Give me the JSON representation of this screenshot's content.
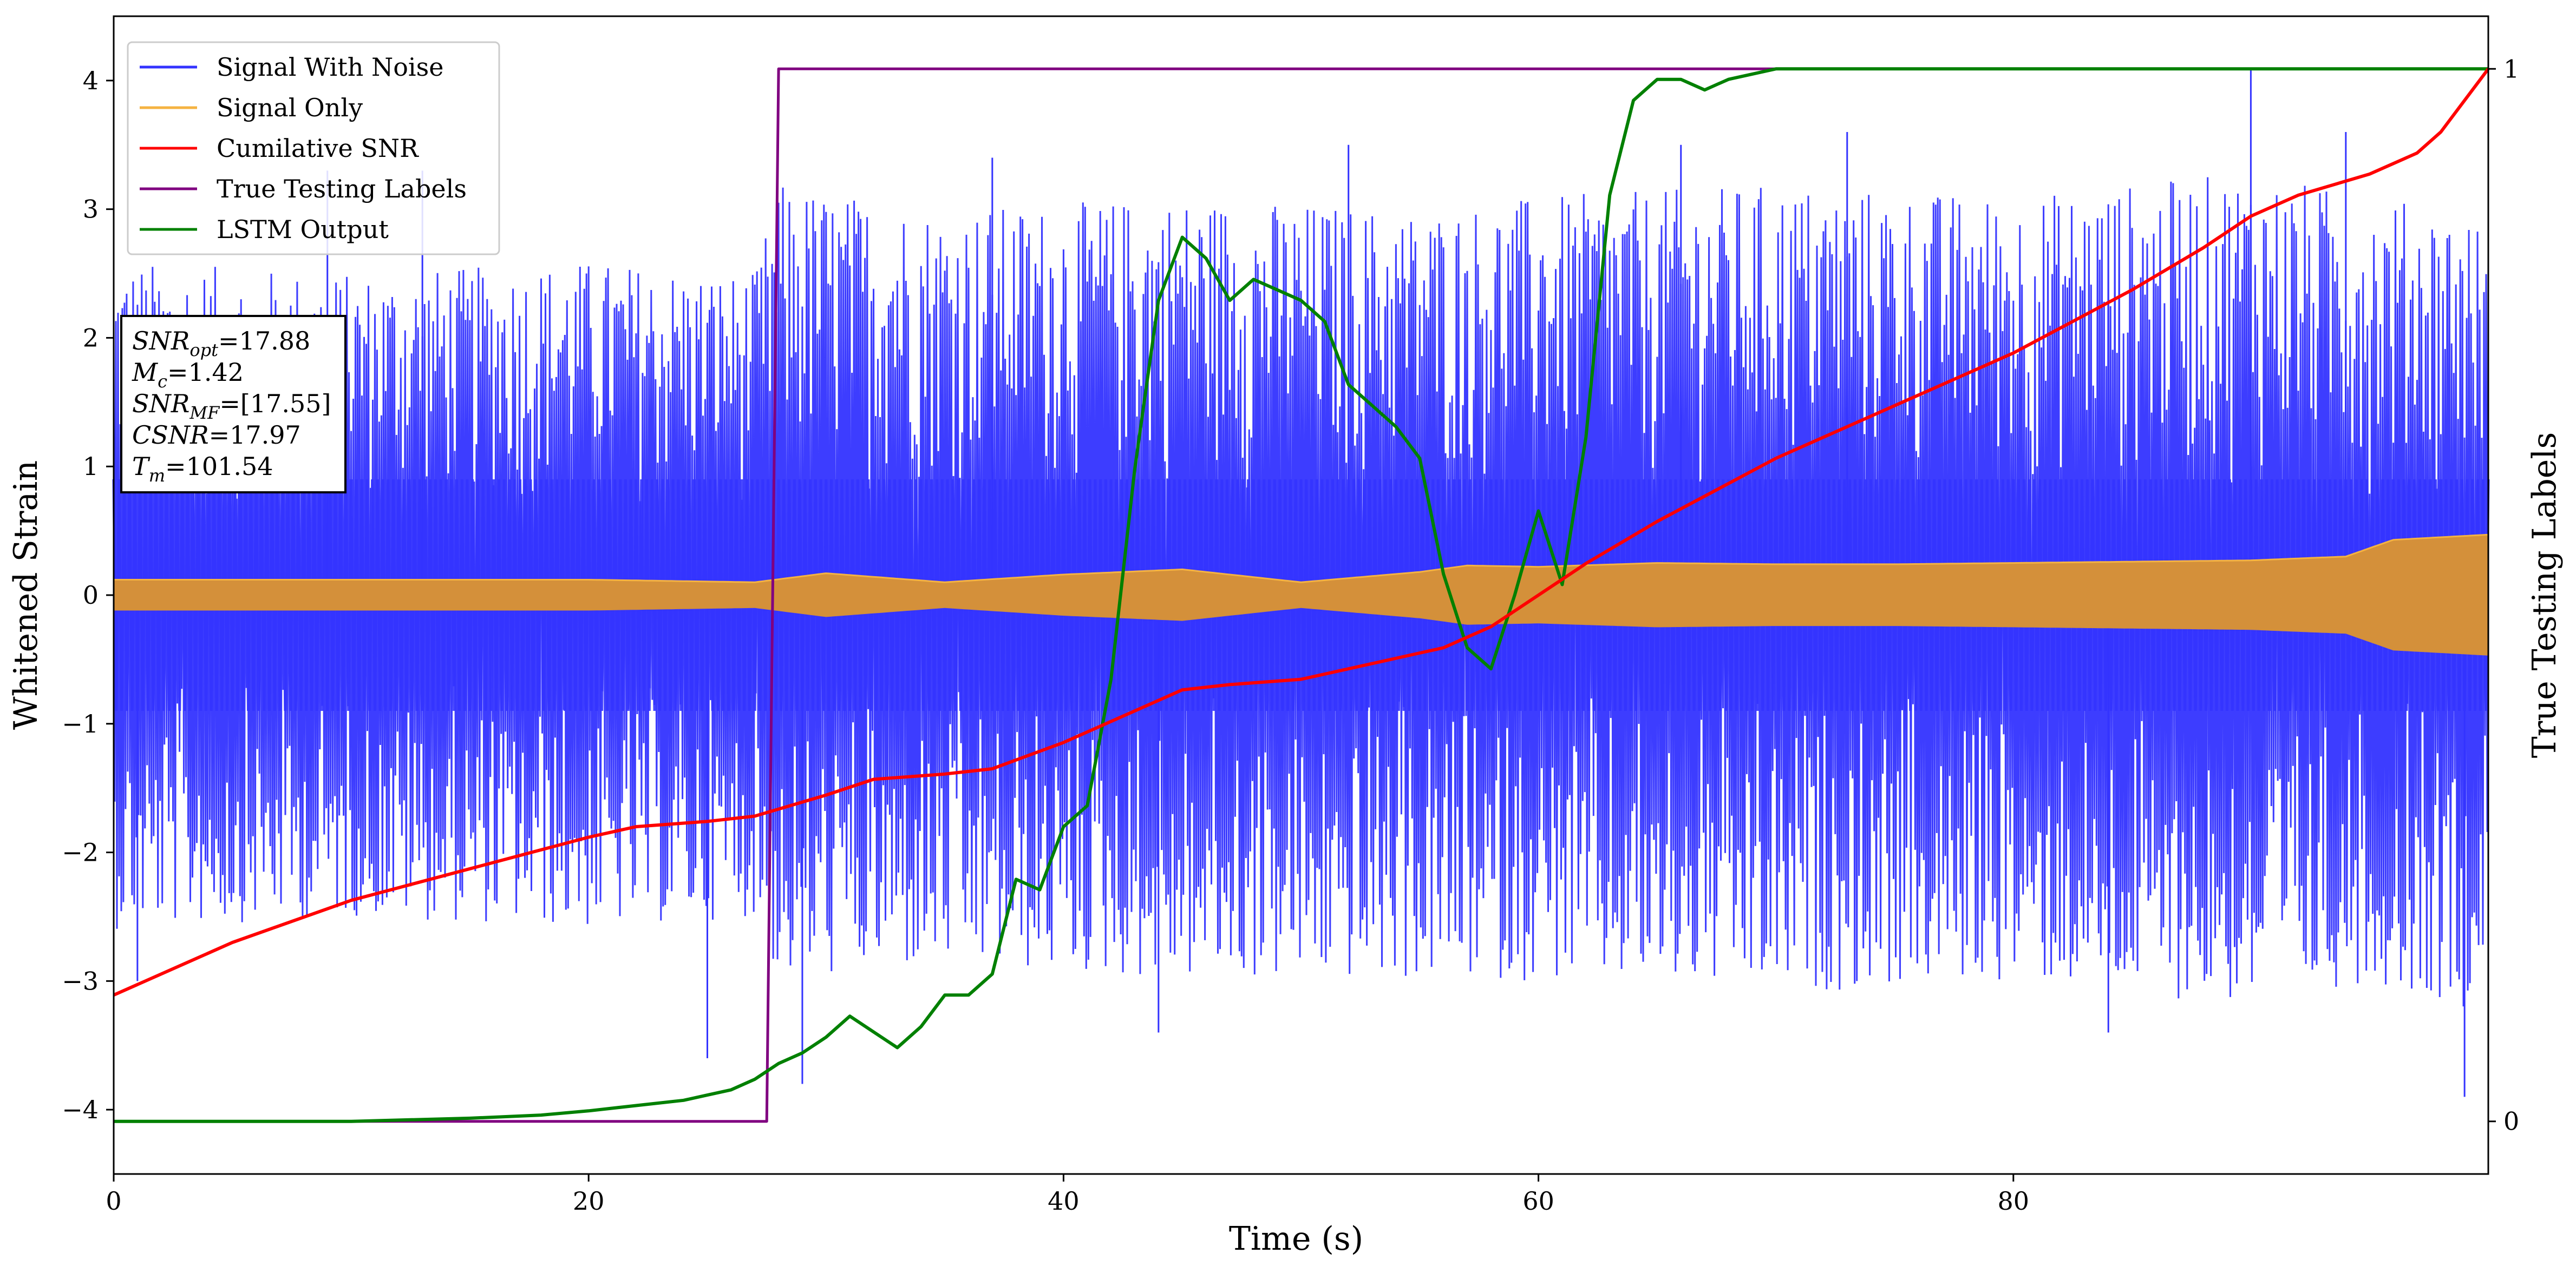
{
  "chart_data": {
    "type": "line",
    "title": "",
    "xlabel": "Time (s)",
    "ylabel": "Whitened Strain",
    "y2label": "True Testing Labels",
    "xlim": [
      0,
      100
    ],
    "ylim": [
      -4.5,
      4.5
    ],
    "y2lim": [
      -0.05,
      1.05
    ],
    "x_ticks": [
      "0",
      "20",
      "40",
      "60",
      "80"
    ],
    "y_ticks": [
      "−4",
      "−3",
      "−2",
      "−1",
      "0",
      "1",
      "2",
      "3",
      "4"
    ],
    "y2_ticks": [
      "0",
      "1"
    ],
    "grid": false,
    "legend_position": "top-left",
    "series": [
      {
        "name": "Signal With Noise",
        "axis": "left",
        "color": "#3333ff",
        "style": "dense noisy oscillation",
        "envelope_x": [
          0,
          10,
          20,
          27,
          28,
          35,
          45,
          55,
          60,
          70,
          80,
          90,
          95,
          99,
          100
        ],
        "envelope_upper": [
          2.6,
          2.5,
          2.6,
          2.5,
          3.2,
          3.0,
          3.1,
          3.0,
          3.1,
          3.2,
          3.1,
          3.3,
          3.1,
          3.0,
          2.8
        ],
        "envelope_lower": [
          -2.6,
          -2.5,
          -2.6,
          -2.5,
          -3.0,
          -2.9,
          -3.0,
          -3.0,
          -3.0,
          -3.1,
          -3.0,
          -3.2,
          -3.0,
          -3.2,
          -2.8
        ],
        "peaks_x": [
          1,
          9,
          13,
          25,
          29,
          37,
          44,
          52,
          66,
          73,
          84,
          90,
          94,
          99
        ],
        "peaks_y": [
          -3.0,
          3.3,
          3.3,
          -3.6,
          -3.8,
          3.4,
          -3.4,
          3.5,
          3.5,
          3.6,
          -3.4,
          4.1,
          3.6,
          -3.9
        ]
      },
      {
        "name": "Signal Only",
        "axis": "left",
        "color": "#f5b342",
        "style": "chirp oscillation envelope",
        "envelope_x": [
          0,
          10,
          20,
          27,
          30,
          35,
          40,
          45,
          50,
          55,
          57,
          60,
          65,
          70,
          75,
          80,
          85,
          90,
          94,
          96,
          98,
          100
        ],
        "envelope_upper": [
          0.12,
          0.12,
          0.12,
          0.1,
          0.17,
          0.1,
          0.16,
          0.2,
          0.1,
          0.18,
          0.23,
          0.22,
          0.25,
          0.24,
          0.24,
          0.25,
          0.26,
          0.27,
          0.3,
          0.43,
          0.45,
          0.47
        ]
      },
      {
        "name": "Cumilative SNR",
        "axis": "right",
        "color": "#ff0000",
        "x": [
          0,
          5,
          10,
          15,
          20,
          22,
          25,
          27,
          30,
          32,
          35,
          37,
          40,
          42,
          45,
          47,
          50,
          52,
          55,
          56,
          57,
          58,
          60,
          62,
          65,
          70,
          75,
          80,
          85,
          88,
          90,
          92,
          95,
          97,
          98,
          100
        ],
        "y": [
          0.12,
          0.17,
          0.21,
          0.24,
          0.27,
          0.28,
          0.285,
          0.29,
          0.31,
          0.325,
          0.33,
          0.335,
          0.36,
          0.38,
          0.41,
          0.415,
          0.42,
          0.43,
          0.445,
          0.45,
          0.46,
          0.47,
          0.5,
          0.53,
          0.57,
          0.63,
          0.68,
          0.73,
          0.79,
          0.83,
          0.86,
          0.88,
          0.9,
          0.92,
          0.94,
          1.0
        ]
      },
      {
        "name": "True Testing Labels",
        "axis": "right",
        "color": "#800080",
        "x": [
          0,
          27.5,
          28.0,
          100
        ],
        "y": [
          0,
          0,
          1,
          1
        ]
      },
      {
        "name": "LSTM Output",
        "axis": "right",
        "color": "#008000",
        "x": [
          0,
          10,
          15,
          18,
          20,
          22,
          24,
          25,
          26,
          27,
          28,
          29,
          30,
          31,
          32,
          33,
          34,
          35,
          36,
          37,
          38,
          39,
          40,
          41,
          42,
          43,
          44,
          45,
          46,
          47,
          48,
          49,
          50,
          51,
          52,
          53,
          54,
          55,
          56,
          57,
          58,
          59,
          60,
          61,
          62,
          63,
          64,
          65,
          66,
          67,
          68,
          70,
          72,
          75,
          80,
          90,
          100
        ],
        "y": [
          0,
          0,
          0.003,
          0.006,
          0.01,
          0.015,
          0.02,
          0.025,
          0.03,
          0.04,
          0.055,
          0.065,
          0.08,
          0.1,
          0.085,
          0.07,
          0.09,
          0.12,
          0.12,
          0.14,
          0.23,
          0.22,
          0.28,
          0.3,
          0.42,
          0.62,
          0.78,
          0.84,
          0.82,
          0.78,
          0.8,
          0.79,
          0.78,
          0.76,
          0.7,
          0.68,
          0.66,
          0.63,
          0.52,
          0.45,
          0.43,
          0.5,
          0.58,
          0.51,
          0.65,
          0.88,
          0.97,
          0.99,
          0.99,
          0.98,
          0.99,
          1.0,
          1.0,
          1.0,
          1.0,
          1.0,
          1.0
        ]
      }
    ]
  },
  "annotation": {
    "lines": [
      {
        "base": "SNR",
        "sub": "opt",
        "rest": "=17.88"
      },
      {
        "base": "M",
        "sub": "c",
        "rest": "=1.42"
      },
      {
        "base": "SNR",
        "sub": "MF",
        "rest": "=[17.55]"
      },
      {
        "base": "CSNR",
        "sub": "",
        "rest": "=17.97"
      },
      {
        "base": "T",
        "sub": "m",
        "rest": "=101.54"
      }
    ]
  }
}
